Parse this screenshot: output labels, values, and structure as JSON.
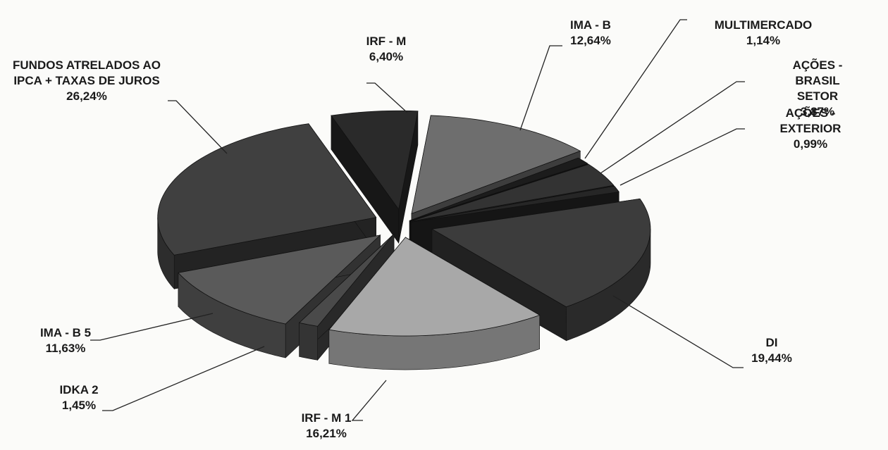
{
  "chart_data": {
    "type": "pie",
    "categories": [
      "IRF - M",
      "IMA - B",
      "MULTIMERCADO",
      "AÇÕES - BRASIL SETOR",
      "AÇÕES - EXTERIOR",
      "DI",
      "IRF - M 1",
      "IDKA 2",
      "IMA - B 5",
      "FUNDOS ATRELADOS AO IPCA + TAXAS DE JUROS"
    ],
    "values": [
      6.4,
      12.64,
      1.14,
      3.87,
      0.99,
      19.44,
      16.21,
      1.45,
      11.63,
      26.24
    ],
    "value_labels": [
      "6,40%",
      "12,64%",
      "1,14%",
      "3,87%",
      "0,99%",
      "19,44%",
      "16,21%",
      "1,45%",
      "11,63%",
      "26,24%"
    ],
    "colors": [
      "#2a2a2a",
      "#6e6e6e",
      "#1c1c1c",
      "#333333",
      "#262626",
      "#3c3c3c",
      "#a8a8a8",
      "#4a4a4a",
      "#5a5a5a",
      "#404040"
    ]
  }
}
